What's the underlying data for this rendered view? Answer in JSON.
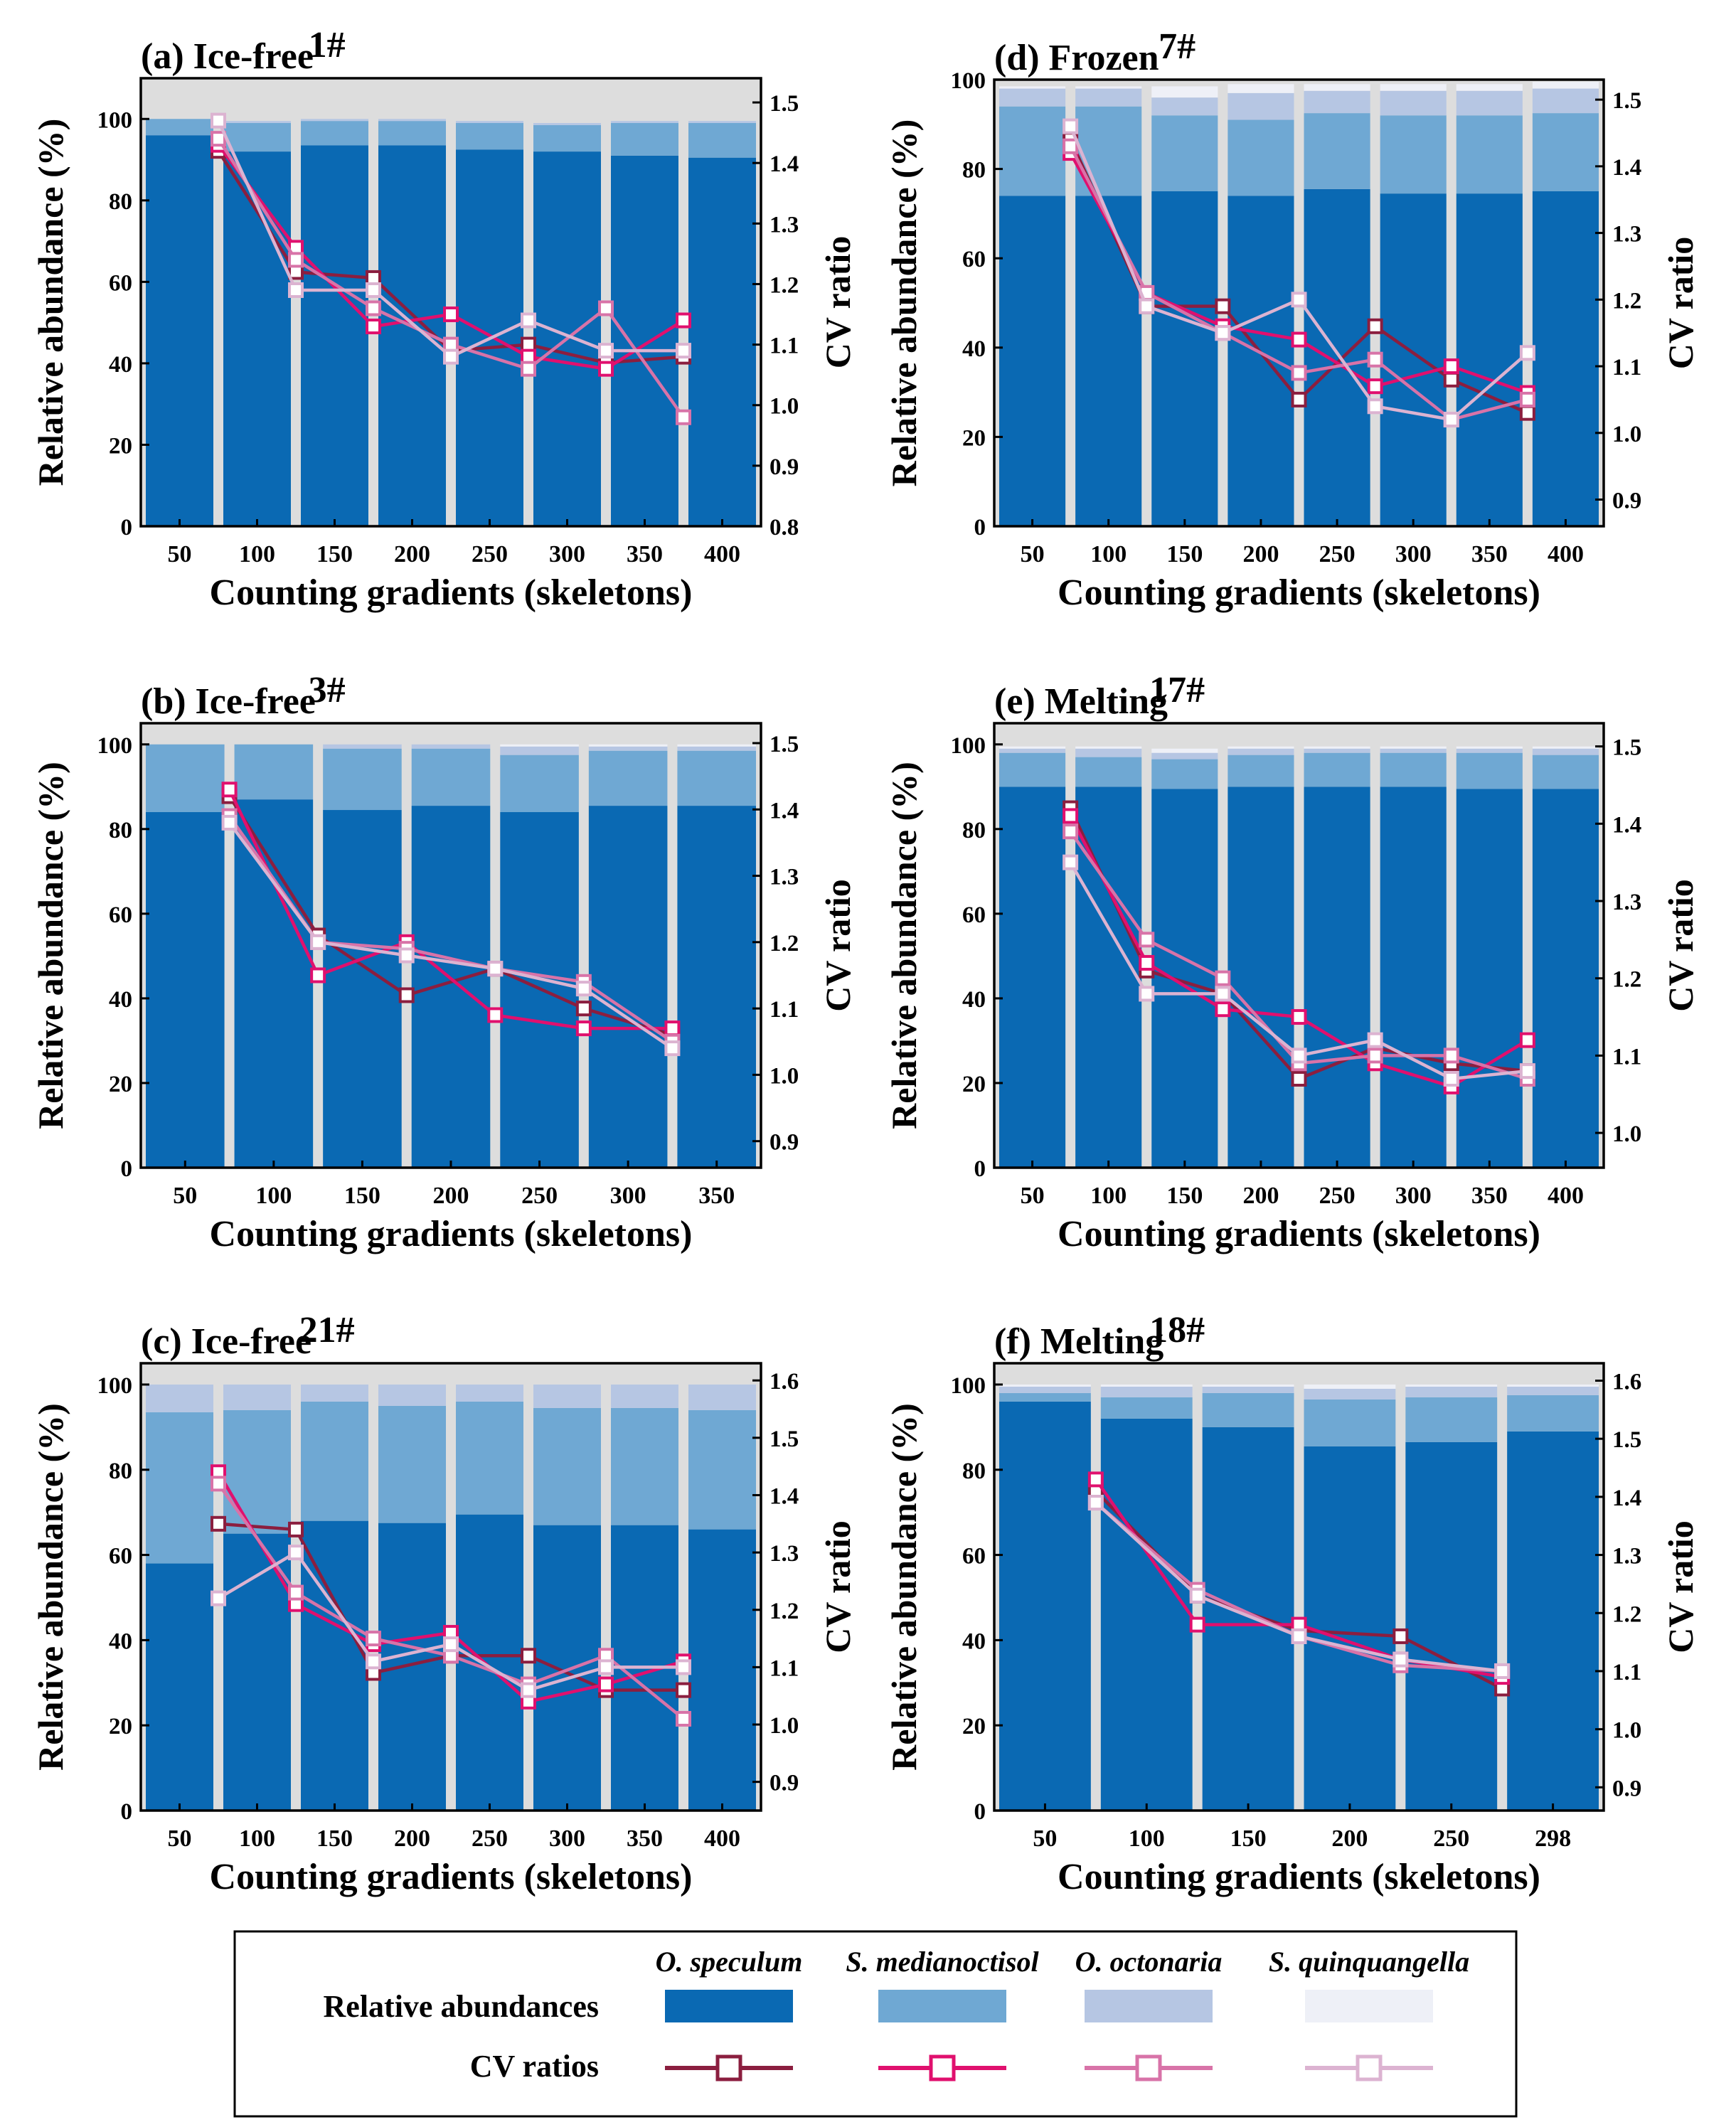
{
  "colors": {
    "panel_bg": "#dddddd",
    "species": [
      "#0a69b3",
      "#6fa8d3",
      "#b6c6e3",
      "#eef0f7"
    ],
    "cv_lines": [
      "#8b1e3f",
      "#e0106e",
      "#d873a8",
      "#dcb3d1"
    ]
  },
  "legend": {
    "abundance_label": "Relative abundances",
    "cv_label": "CV ratios",
    "species": [
      "O. speculum",
      "S. medianoctisol",
      "O. octonaria",
      "S. quinquangella"
    ]
  },
  "chart_data": [
    {
      "type": "bar",
      "title": "(a) Ice-free",
      "sample": "1#",
      "xlabel": "Counting gradients (skeletons)",
      "ylabel": "Relative abundance (%)",
      "ylabel2": "CV ratio",
      "categories": [
        "50",
        "100",
        "150",
        "200",
        "250",
        "300",
        "350",
        "400"
      ],
      "ylim": [
        0,
        110
      ],
      "yticks": [
        0,
        20,
        40,
        60,
        80,
        100
      ],
      "y2lim": [
        0.8,
        1.54
      ],
      "y2ticks": [
        "0.8",
        "0.9",
        "1.0",
        "1.1",
        "1.2",
        "1.3",
        "1.4",
        "1.5"
      ],
      "stacks": [
        {
          "name": "O. speculum",
          "values": [
            96,
            92,
            93.5,
            93.5,
            92.5,
            92,
            91,
            90.5
          ]
        },
        {
          "name": "S. medianoctisol",
          "values": [
            4,
            7,
            6,
            6,
            6.5,
            6.5,
            8,
            8.5
          ]
        },
        {
          "name": "O. octonaria",
          "values": [
            0,
            0.5,
            0.5,
            0.5,
            0.5,
            0.5,
            0.5,
            0.5
          ]
        },
        {
          "name": "S. quinquangella",
          "values": [
            0,
            0,
            0,
            0,
            0,
            0,
            0,
            0
          ]
        }
      ],
      "cv_x": [
        "50-100",
        "100-150",
        "150-200",
        "200-250",
        "250-300",
        "300-350",
        "350-400"
      ],
      "cv_series": [
        {
          "name": "O. speculum",
          "values": [
            1.42,
            1.22,
            1.21,
            1.09,
            1.1,
            1.07,
            1.08
          ]
        },
        {
          "name": "S. medianoctisol",
          "values": [
            1.43,
            1.26,
            1.13,
            1.15,
            1.08,
            1.06,
            1.14
          ]
        },
        {
          "name": "O. octonaria",
          "values": [
            1.44,
            1.24,
            1.16,
            1.1,
            1.06,
            1.16,
            0.98
          ]
        },
        {
          "name": "S. quinquangella",
          "values": [
            1.47,
            1.19,
            1.19,
            1.08,
            1.14,
            1.09,
            1.09
          ]
        }
      ]
    },
    {
      "type": "bar",
      "title": "(b) Ice-free",
      "sample": "3#",
      "xlabel": "Counting gradients (skeletons)",
      "ylabel": "Relative abundance (%)",
      "ylabel2": "CV ratio",
      "categories": [
        "50",
        "100",
        "150",
        "200",
        "250",
        "300",
        "350"
      ],
      "ylim": [
        0,
        105
      ],
      "yticks": [
        0,
        20,
        40,
        60,
        80,
        100
      ],
      "y2lim": [
        0.86,
        1.53
      ],
      "y2ticks": [
        "0.9",
        "1.0",
        "1.1",
        "1.2",
        "1.3",
        "1.4",
        "1.5"
      ],
      "stacks": [
        {
          "name": "O. speculum",
          "values": [
            84,
            87,
            84.5,
            85.5,
            84,
            85.5,
            85.5
          ]
        },
        {
          "name": "S. medianoctisol",
          "values": [
            16,
            13,
            14.5,
            13.5,
            13.5,
            13,
            13
          ]
        },
        {
          "name": "O. octonaria",
          "values": [
            0,
            0,
            1,
            1,
            2,
            1,
            1
          ]
        },
        {
          "name": "S. quinquangella",
          "values": [
            0,
            0,
            0,
            0,
            0.5,
            0.5,
            0.5
          ]
        }
      ],
      "cv_x": [
        "50-100",
        "100-150",
        "150-200",
        "200-250",
        "250-300",
        "300-350"
      ],
      "cv_series": [
        {
          "name": "O. speculum",
          "values": [
            1.42,
            1.21,
            1.12,
            1.16,
            1.1,
            1.06
          ]
        },
        {
          "name": "S. medianoctisol",
          "values": [
            1.43,
            1.15,
            1.2,
            1.09,
            1.07,
            1.07
          ]
        },
        {
          "name": "O. octonaria",
          "values": [
            1.39,
            1.2,
            1.19,
            1.16,
            1.14,
            1.05
          ]
        },
        {
          "name": "S. quinquangella",
          "values": [
            1.38,
            1.2,
            1.18,
            1.16,
            1.13,
            1.04
          ]
        }
      ]
    },
    {
      "type": "bar",
      "title": "(c) Ice-free",
      "sample": "21#",
      "xlabel": "Counting gradients (skeletons)",
      "ylabel": "Relative abundance (%)",
      "ylabel2": "CV ratio",
      "categories": [
        "50",
        "100",
        "150",
        "200",
        "250",
        "300",
        "350",
        "400"
      ],
      "ylim": [
        0,
        105
      ],
      "yticks": [
        0,
        20,
        40,
        60,
        80,
        100
      ],
      "y2lim": [
        0.85,
        1.63
      ],
      "y2ticks": [
        "0.9",
        "1.0",
        "1.1",
        "1.2",
        "1.3",
        "1.4",
        "1.5",
        "1.6"
      ],
      "stacks": [
        {
          "name": "O. speculum",
          "values": [
            58,
            65,
            68,
            67.5,
            69.5,
            67,
            67,
            66
          ]
        },
        {
          "name": "S. medianoctisol",
          "values": [
            35.5,
            29,
            28,
            27.5,
            26.5,
            27.5,
            27.5,
            28
          ]
        },
        {
          "name": "O. octonaria",
          "values": [
            6.5,
            6,
            4,
            5,
            4,
            5.5,
            5.5,
            6
          ]
        },
        {
          "name": "S. quinquangella",
          "values": [
            0,
            0,
            0,
            0,
            0,
            0,
            0,
            0
          ]
        }
      ],
      "cv_x": [
        "50-100",
        "100-150",
        "150-200",
        "200-250",
        "250-300",
        "300-350",
        "350-400"
      ],
      "cv_series": [
        {
          "name": "O. speculum",
          "values": [
            1.35,
            1.34,
            1.09,
            1.12,
            1.12,
            1.06,
            1.06
          ]
        },
        {
          "name": "S. medianoctisol",
          "values": [
            1.44,
            1.21,
            1.14,
            1.16,
            1.04,
            1.07,
            1.11
          ]
        },
        {
          "name": "O. octonaria",
          "values": [
            1.42,
            1.23,
            1.15,
            1.12,
            1.07,
            1.12,
            1.01
          ]
        },
        {
          "name": "S. quinquangella",
          "values": [
            1.22,
            1.3,
            1.11,
            1.14,
            1.06,
            1.1,
            1.1
          ]
        }
      ]
    },
    {
      "type": "bar",
      "title": "(d) Frozen",
      "sample": "7#",
      "xlabel": "Counting gradients (skeletons)",
      "ylabel": "Relative abundance (%)",
      "ylabel2": "CV ratio",
      "categories": [
        "50",
        "100",
        "150",
        "200",
        "250",
        "300",
        "350",
        "400"
      ],
      "ylim": [
        0,
        100
      ],
      "yticks": [
        0,
        20,
        40,
        60,
        80,
        100
      ],
      "y2lim": [
        0.86,
        1.53
      ],
      "y2ticks": [
        "0.9",
        "1.0",
        "1.1",
        "1.2",
        "1.3",
        "1.4",
        "1.5"
      ],
      "stacks": [
        {
          "name": "O. speculum",
          "values": [
            74,
            74,
            75,
            74,
            75.5,
            74.5,
            74.5,
            75
          ]
        },
        {
          "name": "S. medianoctisol",
          "values": [
            20,
            20,
            17,
            17,
            17,
            17.5,
            17.5,
            17.5
          ]
        },
        {
          "name": "O. octonaria",
          "values": [
            4,
            4,
            4,
            6,
            5,
            5.5,
            5.5,
            5.5
          ]
        },
        {
          "name": "S. quinquangella",
          "values": [
            0.5,
            0.5,
            2.5,
            2,
            1.5,
            1.5,
            1.5,
            1.5
          ]
        }
      ],
      "cv_x": [
        "50-100",
        "100-150",
        "150-200",
        "200-250",
        "250-300",
        "300-350",
        "350-400"
      ],
      "cv_series": [
        {
          "name": "O. speculum",
          "values": [
            1.44,
            1.19,
            1.19,
            1.05,
            1.16,
            1.08,
            1.03
          ]
        },
        {
          "name": "S. medianoctisol",
          "values": [
            1.42,
            1.21,
            1.16,
            1.14,
            1.07,
            1.1,
            1.06
          ]
        },
        {
          "name": "O. octonaria",
          "values": [
            1.43,
            1.21,
            1.15,
            1.09,
            1.11,
            1.02,
            1.05
          ]
        },
        {
          "name": "S. quinquangella",
          "values": [
            1.46,
            1.19,
            1.15,
            1.2,
            1.04,
            1.02,
            1.12
          ]
        }
      ]
    },
    {
      "type": "bar",
      "title": "(e) Melting",
      "sample": "17#",
      "xlabel": "Counting gradients (skeletons)",
      "ylabel": "Relative abundance (%)",
      "ylabel2": "CV ratio",
      "categories": [
        "50",
        "100",
        "150",
        "200",
        "250",
        "300",
        "350",
        "400"
      ],
      "ylim": [
        0,
        105
      ],
      "yticks": [
        0,
        20,
        40,
        60,
        80,
        100
      ],
      "y2lim": [
        0.955,
        1.53
      ],
      "y2ticks": [
        "1.0",
        "1.1",
        "1.2",
        "1.3",
        "1.4",
        "1.5"
      ],
      "stacks": [
        {
          "name": "O. speculum",
          "values": [
            90,
            90,
            89.5,
            90,
            90,
            90,
            89.5,
            89.5
          ]
        },
        {
          "name": "S. medianoctisol",
          "values": [
            8,
            7,
            7,
            7.5,
            8,
            8,
            8.5,
            8
          ]
        },
        {
          "name": "O. octonaria",
          "values": [
            1,
            2,
            1.5,
            1.5,
            1,
            1,
            1,
            1.5
          ]
        },
        {
          "name": "S. quinquangella",
          "values": [
            0.5,
            0.5,
            1,
            0.5,
            0.5,
            0.5,
            0.5,
            0.5
          ]
        }
      ],
      "cv_x": [
        "50-100",
        "100-150",
        "150-200",
        "200-250",
        "250-300",
        "300-350",
        "350-400"
      ],
      "cv_series": [
        {
          "name": "O. speculum",
          "values": [
            1.42,
            1.21,
            1.18,
            1.07,
            1.11,
            1.09,
            1.08
          ]
        },
        {
          "name": "S. medianoctisol",
          "values": [
            1.41,
            1.22,
            1.16,
            1.15,
            1.09,
            1.06,
            1.12
          ]
        },
        {
          "name": "O. octonaria",
          "values": [
            1.39,
            1.25,
            1.2,
            1.09,
            1.1,
            1.1,
            1.07
          ]
        },
        {
          "name": "S. quinquangella",
          "values": [
            1.35,
            1.18,
            1.18,
            1.1,
            1.12,
            1.07,
            1.08
          ]
        }
      ]
    },
    {
      "type": "bar",
      "title": "(f) Melting",
      "sample": "18#",
      "xlabel": "Counting gradients (skeletons)",
      "ylabel": "Relative abundance (%)",
      "ylabel2": "CV ratio",
      "categories": [
        "50",
        "100",
        "150",
        "200",
        "250",
        "298"
      ],
      "ylim": [
        0,
        105
      ],
      "yticks": [
        0,
        20,
        40,
        60,
        80,
        100
      ],
      "y2lim": [
        0.86,
        1.63
      ],
      "y2ticks": [
        "0.9",
        "1.0",
        "1.1",
        "1.2",
        "1.3",
        "1.4",
        "1.5",
        "1.6"
      ],
      "stacks": [
        {
          "name": "O. speculum",
          "values": [
            96,
            92,
            90,
            85.5,
            86.5,
            89
          ]
        },
        {
          "name": "S. medianoctisol",
          "values": [
            2,
            5,
            8,
            11,
            10.5,
            8.5
          ]
        },
        {
          "name": "O. octonaria",
          "values": [
            1.5,
            2.5,
            1.5,
            2.5,
            2.5,
            2
          ]
        },
        {
          "name": "S. quinquangella",
          "values": [
            0.5,
            0.5,
            0.5,
            1,
            0.5,
            0.5
          ]
        }
      ],
      "cv_x": [
        "50-100",
        "100-150",
        "150-200",
        "200-250",
        "250-298"
      ],
      "cv_series": [
        {
          "name": "O. speculum",
          "values": [
            1.41,
            1.23,
            1.17,
            1.16,
            1.07
          ]
        },
        {
          "name": "S. medianoctisol",
          "values": [
            1.43,
            1.18,
            1.18,
            1.12,
            1.09
          ]
        },
        {
          "name": "O. octonaria",
          "values": [
            1.39,
            1.24,
            1.16,
            1.11,
            1.1
          ]
        },
        {
          "name": "S. quinquangella",
          "values": [
            1.39,
            1.23,
            1.16,
            1.12,
            1.1
          ]
        }
      ]
    }
  ]
}
